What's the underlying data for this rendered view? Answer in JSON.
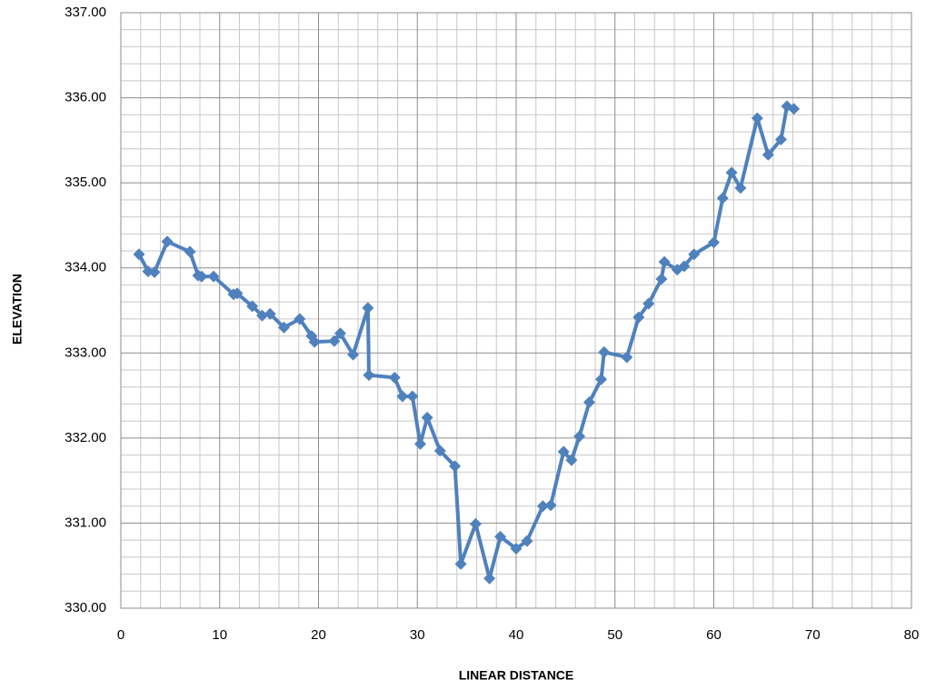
{
  "chart_data": {
    "type": "line",
    "x_label": "LINEAR DISTANCE",
    "y_label": "ELEVATION",
    "xlim": [
      0,
      80
    ],
    "xticks": [
      0,
      10,
      20,
      30,
      40,
      50,
      60,
      70,
      80
    ],
    "ylim": [
      330,
      337
    ],
    "yticks": [
      {
        "value": 330,
        "label": "330.00"
      },
      {
        "value": 331,
        "label": "331.00"
      },
      {
        "value": 332,
        "label": "332.00"
      },
      {
        "value": 333,
        "label": "333.00"
      },
      {
        "value": 334,
        "label": "334.00"
      },
      {
        "value": 335,
        "label": "335.00"
      },
      {
        "value": 336,
        "label": "336.00"
      },
      {
        "value": 337,
        "label": "337.00"
      }
    ],
    "grid": true,
    "series": [
      {
        "color": "#4f81bd",
        "x": [
          1.84,
          2.76,
          3.4,
          4.69,
          6.99,
          7.82,
          8.18,
          9.38,
          11.4,
          11.77,
          13.3,
          14.3,
          15.1,
          16.5,
          18.1,
          19.3,
          19.6,
          21.6,
          22.2,
          23.5,
          25.0,
          25.1,
          27.7,
          28.5,
          29.5,
          30.3,
          31.0,
          32.3,
          33.8,
          34.4,
          35.9,
          37.3,
          38.4,
          40.0,
          41.1,
          42.7,
          43.5,
          44.8,
          45.6,
          46.4,
          47.4,
          48.6,
          48.9,
          51.2,
          52.4,
          53.4,
          54.7,
          55.0,
          56.3,
          57.0,
          58.0,
          60.0,
          60.9,
          61.8,
          62.7,
          64.4,
          65.5,
          66.8,
          67.4,
          68.1
        ],
        "values": [
          334.16,
          333.96,
          333.95,
          334.31,
          334.19,
          333.91,
          333.9,
          333.9,
          333.69,
          333.7,
          333.55,
          333.44,
          333.46,
          333.3,
          333.4,
          333.2,
          333.13,
          333.14,
          333.23,
          332.98,
          333.53,
          332.74,
          332.71,
          332.49,
          332.49,
          331.93,
          332.24,
          331.85,
          331.67,
          330.52,
          330.99,
          330.35,
          330.84,
          330.7,
          330.79,
          331.2,
          331.21,
          331.84,
          331.74,
          332.02,
          332.42,
          332.69,
          333.01,
          332.95,
          333.42,
          333.58,
          333.87,
          334.07,
          333.98,
          334.02,
          334.16,
          334.3,
          334.82,
          335.12,
          334.94,
          335.76,
          335.33,
          335.51,
          335.9,
          335.87
        ]
      }
    ]
  }
}
